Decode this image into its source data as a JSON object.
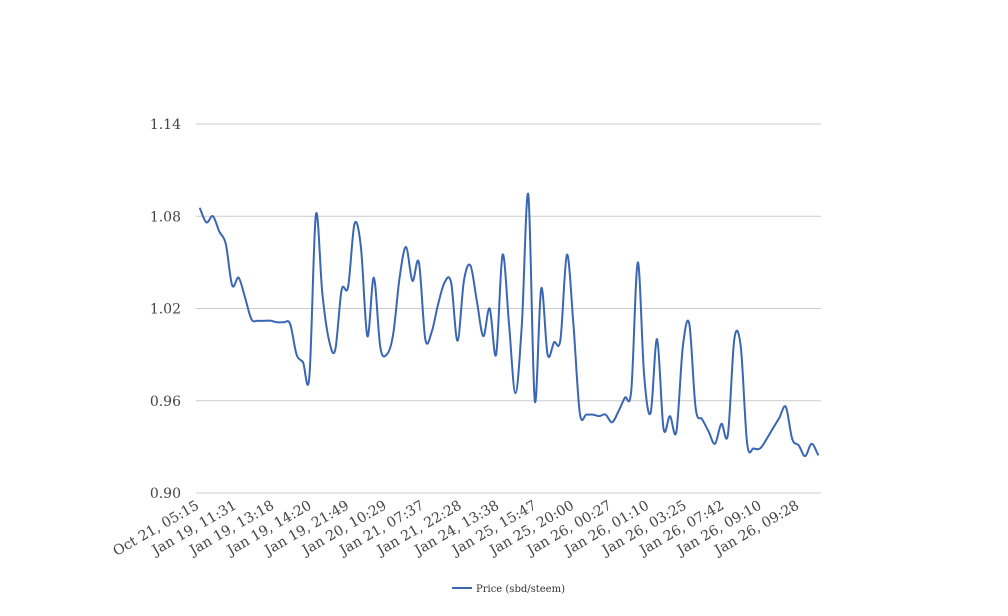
{
  "chart_data": {
    "type": "line",
    "title": "",
    "xlabel": "",
    "ylabel": "",
    "ylim": [
      0.9,
      1.14
    ],
    "y_ticks": [
      "0.90",
      "0.96",
      "1.02",
      "1.08",
      "1.14"
    ],
    "x_tick_labels": [
      "Oct 21, 05:15",
      "Jan 19, 11:31",
      "Jan 19, 13:18",
      "Jan 19, 14:20",
      "Jan 19, 21:49",
      "Jan 20, 10:29",
      "Jan 21, 07:37",
      "Jan 21, 22:28",
      "Jan 24, 13:38",
      "Jan 25, 15:47",
      "Jan 25, 20:00",
      "Jan 26, 00:27",
      "Jan 26, 01:10",
      "Jan 26, 03:25",
      "Jan 26, 07:42",
      "Jan 26, 09:10",
      "Jan 26, 09:28"
    ],
    "grid": true,
    "legend_position": "bottom",
    "line_color": "#3a66b4",
    "series": [
      {
        "name": "Price (sbd/steem)",
        "values": [
          1.085,
          1.076,
          1.08,
          1.07,
          1.062,
          1.035,
          1.04,
          1.027,
          1.013,
          1.012,
          1.012,
          1.012,
          1.011,
          1.011,
          1.01,
          0.99,
          0.985,
          0.976,
          1.081,
          1.03,
          1.0,
          0.993,
          1.032,
          1.034,
          1.075,
          1.06,
          1.002,
          1.04,
          0.995,
          0.99,
          1.003,
          1.04,
          1.06,
          1.038,
          1.05,
          1.0,
          1.005,
          1.023,
          1.037,
          1.037,
          0.999,
          1.038,
          1.048,
          1.025,
          1.002,
          1.02,
          0.99,
          1.055,
          1.01,
          0.965,
          1.01,
          1.094,
          0.96,
          1.033,
          0.99,
          0.998,
          1.0,
          1.055,
          1.01,
          0.952,
          0.951,
          0.951,
          0.95,
          0.951,
          0.946,
          0.953,
          0.962,
          0.967,
          1.05,
          0.976,
          0.952,
          1.0,
          0.942,
          0.95,
          0.94,
          0.995,
          1.01,
          0.955,
          0.948,
          0.94,
          0.932,
          0.945,
          0.938,
          1.0,
          0.995,
          0.932,
          0.929,
          0.929,
          0.935,
          0.942,
          0.949,
          0.956,
          0.935,
          0.931,
          0.924,
          0.932,
          0.925
        ]
      }
    ]
  }
}
